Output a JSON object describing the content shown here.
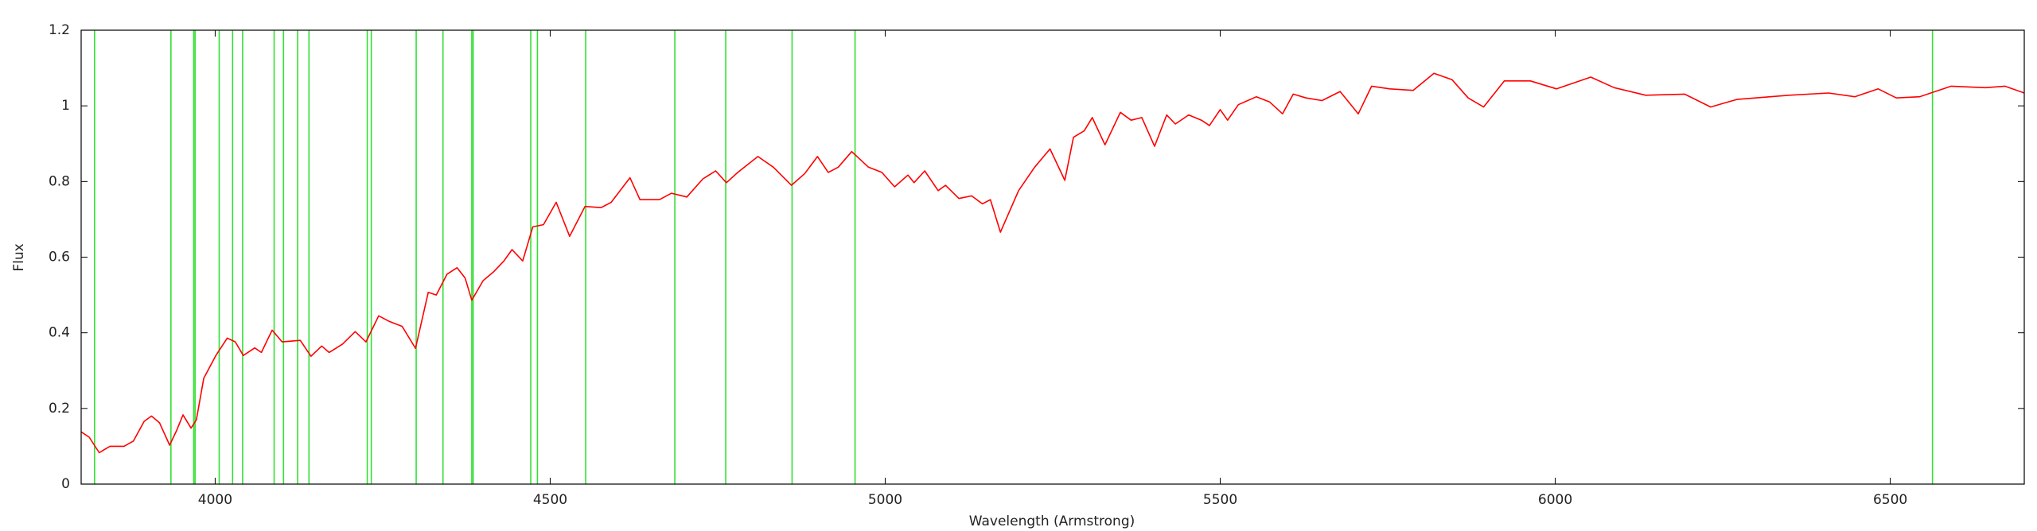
{
  "chart_data": {
    "type": "line",
    "xlabel": "Wavelength (Armstrong)",
    "ylabel": "Flux",
    "xlim": [
      3800,
      6700
    ],
    "ylim": [
      0,
      1.2
    ],
    "xticks": [
      4000,
      4500,
      5000,
      5500,
      6000,
      6500
    ],
    "yticks": [
      0,
      0.2,
      0.4,
      0.6,
      0.8,
      1,
      1.2
    ],
    "x": [
      3800,
      3812,
      3827,
      3843,
      3864,
      3878,
      3894,
      3905,
      3917,
      3932,
      3942,
      3952,
      3964,
      3972,
      3983,
      4001,
      4018,
      4030,
      4042,
      4059,
      4069,
      4085,
      4100,
      4127,
      4143,
      4159,
      4170,
      4190,
      4209,
      4225,
      4244,
      4260,
      4279,
      4299,
      4318,
      4330,
      4346,
      4361,
      4373,
      4383,
      4400,
      4416,
      4431,
      4443,
      4459,
      4474,
      4490,
      4509,
      4529,
      4552,
      4576,
      4591,
      4619,
      4634,
      4663,
      4681,
      4704,
      4728,
      4747,
      4763,
      4780,
      4810,
      4833,
      4860,
      4880,
      4899,
      4915,
      4930,
      4950,
      4975,
      4995,
      5014,
      5034,
      5043,
      5059,
      5079,
      5090,
      5110,
      5129,
      5145,
      5157,
      5172,
      5199,
      5223,
      5246,
      5268,
      5281,
      5297,
      5309,
      5328,
      5351,
      5367,
      5383,
      5402,
      5420,
      5433,
      5453,
      5472,
      5484,
      5500,
      5511,
      5527,
      5554,
      5574,
      5593,
      5609,
      5628,
      5652,
      5679,
      5706,
      5726,
      5753,
      5788,
      5819,
      5846,
      5870,
      5893,
      5924,
      5963,
      6002,
      6053,
      6088,
      6135,
      6193,
      6232,
      6271,
      6349,
      6408,
      6447,
      6482,
      6509,
      6544,
      6591,
      6642,
      6671,
      6700
    ],
    "series": [
      {
        "color": "#ff0000",
        "values": [
          0.138,
          0.124,
          0.083,
          0.1,
          0.1,
          0.114,
          0.166,
          0.18,
          0.162,
          0.103,
          0.14,
          0.183,
          0.148,
          0.17,
          0.28,
          0.34,
          0.386,
          0.376,
          0.34,
          0.36,
          0.348,
          0.407,
          0.376,
          0.38,
          0.338,
          0.365,
          0.348,
          0.37,
          0.403,
          0.376,
          0.445,
          0.43,
          0.417,
          0.359,
          0.507,
          0.5,
          0.555,
          0.572,
          0.545,
          0.486,
          0.538,
          0.562,
          0.59,
          0.62,
          0.59,
          0.68,
          0.686,
          0.745,
          0.655,
          0.734,
          0.731,
          0.745,
          0.81,
          0.752,
          0.752,
          0.769,
          0.759,
          0.807,
          0.828,
          0.797,
          0.824,
          0.866,
          0.838,
          0.79,
          0.821,
          0.866,
          0.824,
          0.838,
          0.879,
          0.838,
          0.824,
          0.786,
          0.817,
          0.797,
          0.828,
          0.776,
          0.79,
          0.755,
          0.762,
          0.741,
          0.752,
          0.666,
          0.776,
          0.838,
          0.886,
          0.803,
          0.917,
          0.934,
          0.969,
          0.897,
          0.983,
          0.962,
          0.969,
          0.893,
          0.976,
          0.952,
          0.976,
          0.962,
          0.948,
          0.99,
          0.962,
          1.003,
          1.024,
          1.01,
          0.979,
          1.031,
          1.021,
          1.014,
          1.038,
          0.979,
          1.052,
          1.045,
          1.041,
          1.086,
          1.069,
          1.021,
          0.997,
          1.066,
          1.066,
          1.045,
          1.076,
          1.048,
          1.028,
          1.031,
          0.997,
          1.017,
          1.028,
          1.034,
          1.024,
          1.045,
          1.021,
          1.024,
          1.052,
          1.048,
          1.052,
          1.034
        ]
      }
    ],
    "line_color": "#33e033",
    "lines": [
      3820,
      3934,
      3968,
      3970,
      4006,
      4026,
      4041,
      4088,
      4102,
      4123,
      4140,
      4227,
      4233,
      4300,
      4340,
      4383,
      4385,
      4471,
      4481,
      4553,
      4686,
      4762,
      4861,
      4955,
      6563
    ]
  }
}
